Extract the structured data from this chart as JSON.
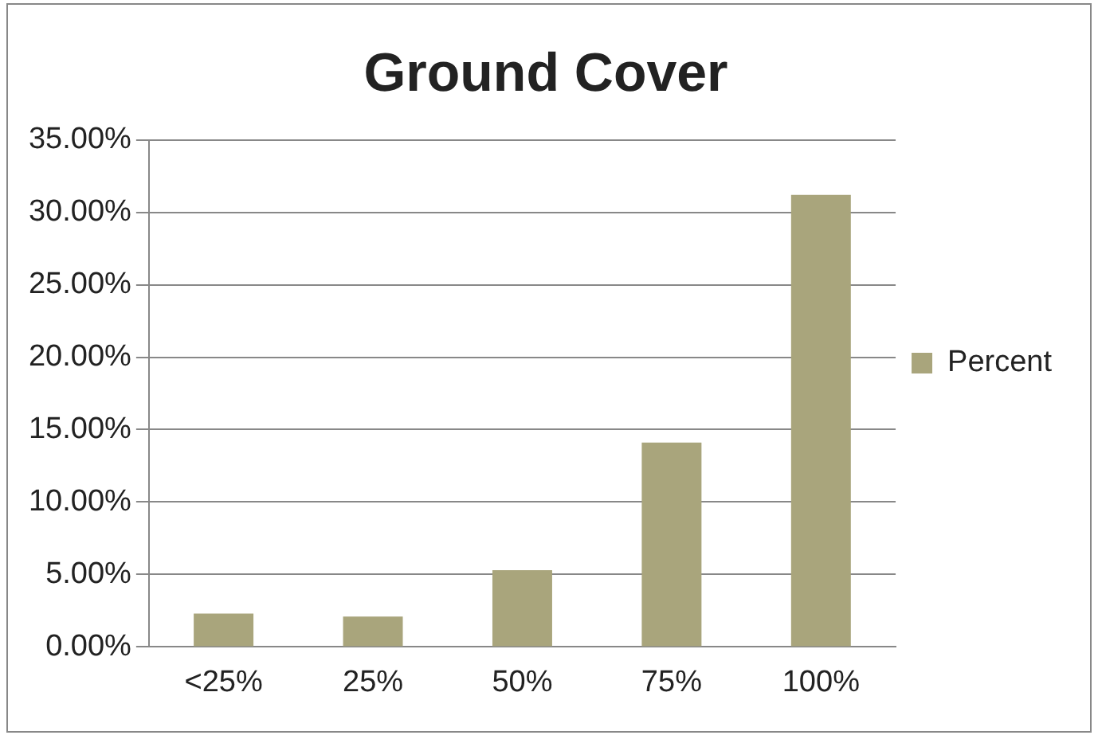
{
  "chart_data": {
    "type": "bar",
    "title": "Ground Cover",
    "categories": [
      "<25%",
      "25%",
      "50%",
      "75%",
      "100%"
    ],
    "series": [
      {
        "name": "Percent",
        "color": "#a9a57c",
        "values": [
          2.3,
          2.1,
          5.3,
          14.1,
          31.2
        ]
      }
    ],
    "ylim": [
      0,
      35
    ],
    "yticks": [
      {
        "value": 0,
        "label": "0.00%"
      },
      {
        "value": 5,
        "label": "5.00%"
      },
      {
        "value": 10,
        "label": "10.00%"
      },
      {
        "value": 15,
        "label": "15.00%"
      },
      {
        "value": 20,
        "label": "20.00%"
      },
      {
        "value": 25,
        "label": "25.00%"
      },
      {
        "value": 30,
        "label": "30.00%"
      },
      {
        "value": 35,
        "label": "35.00%"
      }
    ],
    "grid": "y",
    "legend": "right"
  }
}
